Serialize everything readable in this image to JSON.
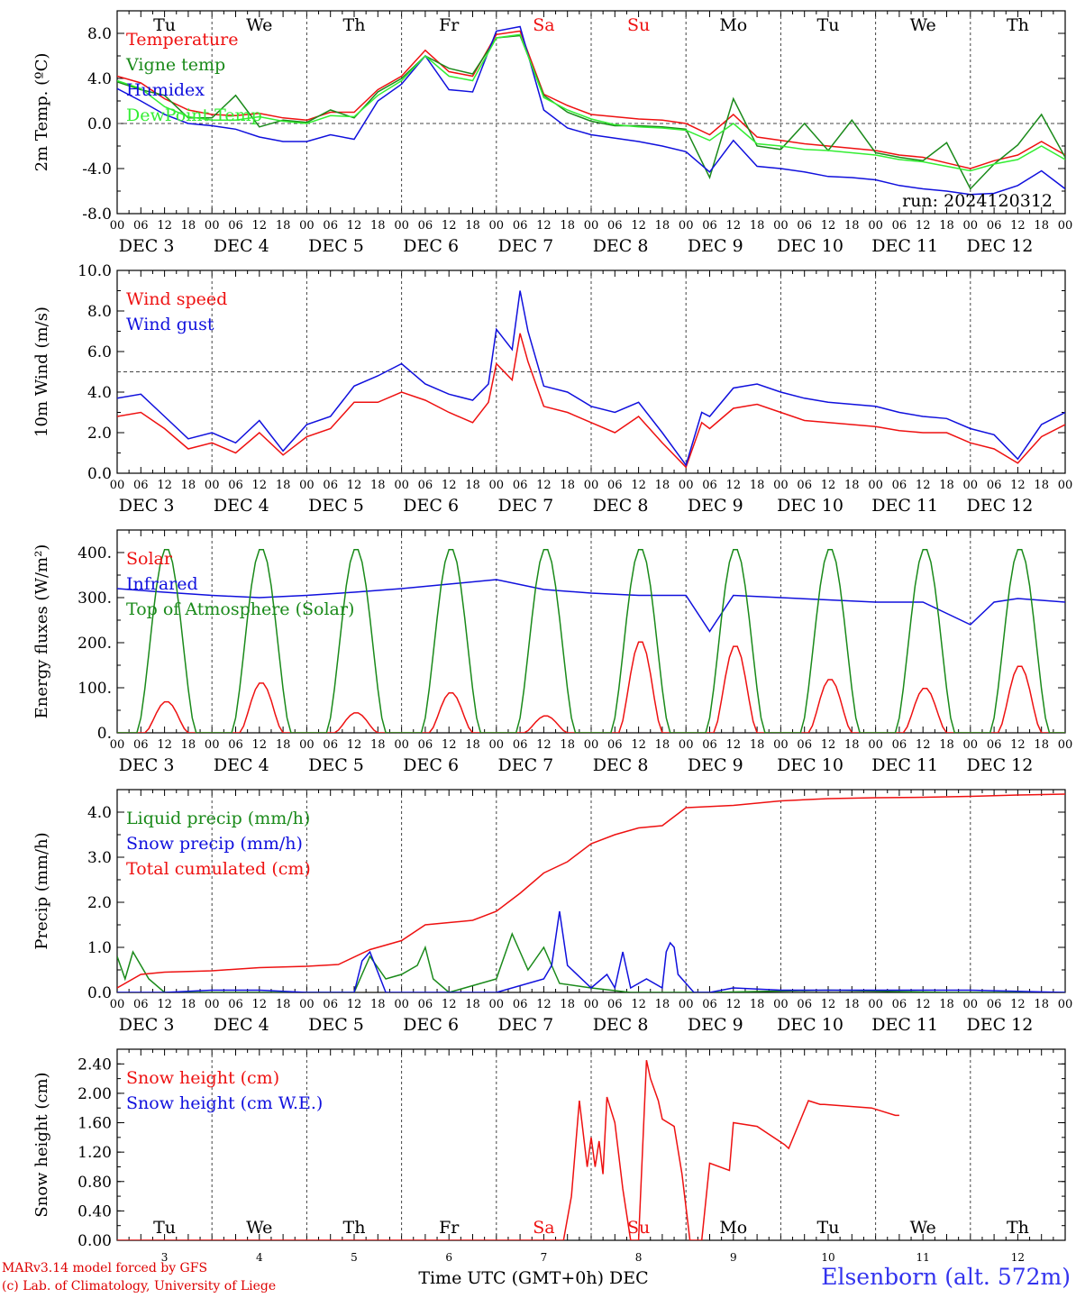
{
  "run_label": "run: 2024120312",
  "days": [
    "Tu",
    "We",
    "Th",
    "Fr",
    "Sa",
    "Su",
    "Mo",
    "Tu",
    "We",
    "Th"
  ],
  "weekend_days": [
    "Sa",
    "Su"
  ],
  "hour_ticks": [
    "00",
    "06",
    "12",
    "18"
  ],
  "final_tick": "00",
  "date_labels": [
    "DEC  3",
    "DEC  4",
    "DEC  5",
    "DEC  6",
    "DEC  7",
    "DEC  8",
    "DEC  9",
    "DEC 10",
    "DEC 11",
    "DEC 12"
  ],
  "bottom_day_numbers": [
    "3",
    "4",
    "5",
    "6",
    "7",
    "8",
    "9",
    "10",
    "11",
    "12"
  ],
  "bottom_xlabel": "Time UTC (GMT+0h) DEC",
  "footer": {
    "model": "MARv3.14 model forced by GFS",
    "copyright": "(c) Lab. of Climatology, University of Liege",
    "station": "Elsenborn (alt. 572m)"
  },
  "colors": {
    "red": "#ee1111",
    "green": "#1a8a1a",
    "blue": "#1010dd",
    "lightgreen": "#33ee33",
    "axis": "#000000",
    "grid": "#444444"
  },
  "chart_data": [
    {
      "type": "line",
      "ylabel": "2m Temp. (ºC)",
      "ylim": [
        -8,
        10
      ],
      "yticks": [
        "-8.0",
        "-4.0",
        "0.0",
        "4.0",
        "8.0"
      ],
      "reference_line": 0,
      "x_unit": "hours since 2024-12-03 00 UTC",
      "series": [
        {
          "name": "Temperature",
          "color": "red",
          "x": [
            0,
            6,
            12,
            18,
            24,
            30,
            36,
            42,
            48,
            54,
            60,
            66,
            72,
            78,
            84,
            90,
            96,
            102,
            108,
            114,
            120,
            126,
            132,
            138,
            144,
            150,
            156,
            162,
            168,
            174,
            180,
            186,
            192,
            198,
            204,
            210,
            216,
            222,
            228,
            234,
            240
          ],
          "values": [
            4.2,
            3.6,
            2.2,
            1.2,
            0.8,
            0.7,
            0.9,
            0.5,
            0.3,
            1.0,
            1.0,
            3.0,
            4.2,
            6.5,
            4.6,
            4.2,
            7.9,
            8.2,
            2.6,
            1.6,
            0.8,
            0.6,
            0.4,
            0.3,
            0.0,
            -1.0,
            0.8,
            -1.2,
            -1.5,
            -1.8,
            -2.0,
            -2.2,
            -2.4,
            -2.8,
            -3.0,
            -3.5,
            -4.0,
            -3.3,
            -2.8,
            -1.6,
            -2.8
          ]
        },
        {
          "name": "Vigne temp",
          "color": "green",
          "x": [
            0,
            6,
            12,
            18,
            24,
            30,
            36,
            42,
            48,
            54,
            60,
            66,
            72,
            78,
            84,
            90,
            96,
            102,
            108,
            114,
            120,
            126,
            132,
            138,
            144,
            150,
            156,
            162,
            168,
            174,
            180,
            186,
            192,
            198,
            204,
            210,
            216,
            222,
            228,
            234,
            240
          ],
          "values": [
            3.7,
            3.0,
            2.5,
            0.5,
            0.5,
            2.5,
            -0.3,
            0.3,
            0.1,
            1.2,
            0.5,
            2.8,
            4.0,
            6.0,
            4.9,
            4.4,
            7.6,
            7.8,
            2.5,
            1.0,
            0.2,
            -0.2,
            -0.2,
            -0.3,
            -0.5,
            -4.8,
            2.2,
            -2.0,
            -2.3,
            0.0,
            -2.4,
            0.3,
            -2.6,
            -3.0,
            -3.3,
            -1.7,
            -5.8,
            -3.6,
            -1.9,
            0.8,
            -3.0
          ]
        },
        {
          "name": "Humidex",
          "color": "blue",
          "x": [
            0,
            6,
            12,
            18,
            24,
            30,
            36,
            42,
            48,
            54,
            60,
            66,
            72,
            78,
            84,
            90,
            96,
            102,
            108,
            114,
            120,
            126,
            132,
            138,
            144,
            150,
            156,
            162,
            168,
            174,
            180,
            186,
            192,
            198,
            204,
            210,
            216,
            222,
            228,
            234,
            240
          ],
          "values": [
            3.1,
            2.0,
            0.8,
            0.0,
            -0.2,
            -0.5,
            -1.2,
            -1.6,
            -1.6,
            -1.0,
            -1.4,
            2.0,
            3.5,
            6.0,
            3.0,
            2.8,
            8.2,
            8.6,
            1.2,
            -0.4,
            -1.0,
            -1.3,
            -1.6,
            -2.0,
            -2.5,
            -4.3,
            -1.5,
            -3.8,
            -4.0,
            -4.3,
            -4.7,
            -4.8,
            -5.0,
            -5.5,
            -5.8,
            -6.0,
            -6.3,
            -6.2,
            -5.5,
            -4.2,
            -5.8
          ]
        },
        {
          "name": "DewPoint Temp",
          "color": "lightgreen",
          "x": [
            0,
            6,
            12,
            18,
            24,
            30,
            36,
            42,
            48,
            54,
            60,
            66,
            72,
            78,
            84,
            90,
            96,
            102,
            108,
            114,
            120,
            126,
            132,
            138,
            144,
            150,
            156,
            162,
            168,
            174,
            180,
            186,
            192,
            198,
            204,
            210,
            216,
            222,
            228,
            234,
            240
          ],
          "values": [
            3.8,
            3.1,
            1.5,
            0.6,
            0.3,
            0.3,
            0.6,
            0.2,
            0.0,
            0.7,
            0.6,
            2.5,
            3.8,
            6.0,
            4.2,
            3.8,
            7.6,
            7.9,
            2.3,
            1.2,
            0.4,
            -0.1,
            -0.3,
            -0.4,
            -0.6,
            -1.5,
            0.0,
            -1.8,
            -2.0,
            -2.3,
            -2.4,
            -2.6,
            -2.8,
            -3.2,
            -3.4,
            -3.8,
            -4.2,
            -3.6,
            -3.2,
            -2.0,
            -3.2
          ]
        }
      ]
    },
    {
      "type": "line",
      "ylabel": "10m Wind (m/s)",
      "ylim": [
        0,
        10
      ],
      "yticks": [
        "0.0",
        "2.0",
        "4.0",
        "6.0",
        "8.0",
        "10.0"
      ],
      "reference_line": 5,
      "x_unit": "hours since 2024-12-03 00 UTC",
      "series": [
        {
          "name": "Wind speed",
          "color": "red",
          "x": [
            0,
            6,
            12,
            18,
            24,
            30,
            36,
            42,
            48,
            54,
            60,
            66,
            72,
            78,
            84,
            90,
            94,
            96,
            100,
            102,
            104,
            108,
            114,
            120,
            126,
            132,
            138,
            144,
            148,
            150,
            156,
            162,
            168,
            174,
            180,
            186,
            192,
            198,
            204,
            210,
            216,
            222,
            228,
            234,
            240
          ],
          "values": [
            2.8,
            3.0,
            2.2,
            1.2,
            1.5,
            1.0,
            2.0,
            0.9,
            1.8,
            2.2,
            3.5,
            3.5,
            4.0,
            3.6,
            3.0,
            2.5,
            3.5,
            5.4,
            4.6,
            6.9,
            5.5,
            3.3,
            3.0,
            2.5,
            2.0,
            2.8,
            1.5,
            0.3,
            2.5,
            2.2,
            3.2,
            3.4,
            3.0,
            2.6,
            2.5,
            2.4,
            2.3,
            2.1,
            2.0,
            2.0,
            1.5,
            1.2,
            0.5,
            1.8,
            2.4
          ]
        },
        {
          "name": "Wind gust",
          "color": "blue",
          "x": [
            0,
            6,
            12,
            18,
            24,
            30,
            36,
            42,
            48,
            54,
            60,
            66,
            72,
            78,
            84,
            90,
            94,
            96,
            100,
            102,
            104,
            108,
            114,
            120,
            126,
            132,
            138,
            144,
            148,
            150,
            156,
            162,
            168,
            174,
            180,
            186,
            192,
            198,
            204,
            210,
            216,
            222,
            228,
            234,
            240
          ],
          "values": [
            3.7,
            3.9,
            2.8,
            1.7,
            2.0,
            1.5,
            2.6,
            1.1,
            2.4,
            2.8,
            4.3,
            4.8,
            5.4,
            4.4,
            3.9,
            3.6,
            4.4,
            7.1,
            6.1,
            9.0,
            7.0,
            4.3,
            4.0,
            3.3,
            3.0,
            3.5,
            2.0,
            0.4,
            3.0,
            2.8,
            4.2,
            4.4,
            4.0,
            3.7,
            3.5,
            3.4,
            3.3,
            3.0,
            2.8,
            2.7,
            2.2,
            1.9,
            0.7,
            2.4,
            3.0
          ]
        }
      ]
    },
    {
      "type": "line",
      "ylabel": "Energy fluxes (W/m²)",
      "ylim": [
        0,
        450
      ],
      "yticks": [
        "0.",
        "100.",
        "200.",
        "300.",
        "400."
      ],
      "x_unit": "hours since 2024-12-03 00 UTC",
      "solar_noon_peaks": [
        70,
        112,
        45,
        90,
        38,
        205,
        195,
        120,
        100,
        150
      ],
      "toa_peak": 410,
      "series": [
        {
          "name": "Solar",
          "color": "red",
          "note": "diurnal, peak values listed in solar_noon_peaks"
        },
        {
          "name": "Infrared",
          "color": "blue",
          "x": [
            0,
            12,
            24,
            36,
            48,
            60,
            72,
            84,
            96,
            108,
            120,
            132,
            144,
            150,
            156,
            168,
            180,
            192,
            204,
            216,
            222,
            228,
            240
          ],
          "values": [
            320,
            312,
            305,
            300,
            305,
            312,
            320,
            330,
            340,
            318,
            310,
            305,
            305,
            225,
            305,
            300,
            295,
            290,
            290,
            240,
            290,
            298,
            290
          ]
        },
        {
          "name": "Top of Atmosphere (Solar)",
          "color": "green",
          "note": "diurnal, peak approx. 410 each day"
        }
      ]
    },
    {
      "type": "line",
      "ylabel": "Precip (mm/h)",
      "ylim": [
        0,
        4.5
      ],
      "yticks": [
        "0.0",
        "1.0",
        "2.0",
        "3.0",
        "4.0"
      ],
      "x_unit": "hours since 2024-12-03 00 UTC",
      "series": [
        {
          "name": "Liquid precip (mm/h)",
          "color": "green",
          "x": [
            0,
            2,
            4,
            8,
            12,
            60,
            64,
            68,
            72,
            76,
            78,
            80,
            84,
            96,
            100,
            104,
            108,
            112,
            120,
            130,
            140,
            150,
            180,
            210,
            240
          ],
          "values": [
            0.8,
            0.3,
            0.9,
            0.3,
            0.0,
            0.0,
            0.8,
            0.3,
            0.4,
            0.6,
            1.0,
            0.3,
            0.0,
            0.3,
            1.3,
            0.5,
            1.0,
            0.2,
            0.1,
            0.0,
            0.0,
            0.0,
            0.05,
            0.0,
            0.0
          ]
        },
        {
          "name": "Snow precip (mm/h)",
          "color": "blue",
          "x": [
            0,
            12,
            24,
            36,
            48,
            60,
            62,
            64,
            68,
            96,
            108,
            110,
            112,
            114,
            120,
            124,
            126,
            128,
            130,
            134,
            138,
            139,
            140,
            141,
            142,
            146,
            150,
            156,
            168,
            192,
            216,
            240
          ],
          "values": [
            0.0,
            0.0,
            0.05,
            0.05,
            0.0,
            0.0,
            0.7,
            0.9,
            0.0,
            0.0,
            0.3,
            0.6,
            1.8,
            0.6,
            0.1,
            0.4,
            0.1,
            0.9,
            0.1,
            0.3,
            0.1,
            0.9,
            1.1,
            1.0,
            0.4,
            0.0,
            0.0,
            0.1,
            0.05,
            0.05,
            0.05,
            0.0
          ]
        },
        {
          "name": "Total cumulated (cm)",
          "color": "red",
          "x": [
            0,
            6,
            12,
            24,
            36,
            48,
            56,
            64,
            72,
            78,
            84,
            90,
            96,
            102,
            108,
            114,
            120,
            126,
            132,
            138,
            144,
            156,
            168,
            180,
            192,
            204,
            216,
            228,
            240
          ],
          "values": [
            0.1,
            0.4,
            0.45,
            0.48,
            0.55,
            0.58,
            0.62,
            0.95,
            1.15,
            1.5,
            1.55,
            1.6,
            1.8,
            2.2,
            2.65,
            2.9,
            3.3,
            3.5,
            3.65,
            3.7,
            4.1,
            4.15,
            4.25,
            4.3,
            4.32,
            4.33,
            4.35,
            4.38,
            4.4
          ]
        }
      ]
    },
    {
      "type": "line",
      "ylabel": "Snow height (cm)",
      "ylim": [
        0,
        2.6
      ],
      "yticks": [
        "0.00",
        "0.40",
        "0.80",
        "1.20",
        "1.60",
        "2.00",
        "2.40"
      ],
      "x_unit": "hours since 2024-12-03 00 UTC",
      "series": [
        {
          "name": "Snow height (cm)",
          "color": "red",
          "x": [
            0,
            36,
            72,
            108,
            113,
            115,
            117,
            119,
            120,
            121,
            122,
            123,
            124,
            126,
            128,
            130,
            132,
            134,
            135,
            137,
            138,
            141,
            143,
            145,
            148,
            150,
            155,
            156,
            162,
            169,
            170,
            175,
            178,
            179,
            191,
            197,
            198
          ],
          "values": [
            0,
            0,
            0,
            0,
            0,
            0.6,
            1.9,
            1.0,
            1.4,
            1.0,
            1.35,
            0.9,
            1.95,
            1.6,
            0.7,
            0,
            0,
            2.45,
            2.2,
            1.9,
            1.65,
            1.55,
            0.9,
            0,
            0,
            1.05,
            0.95,
            1.6,
            1.55,
            1.3,
            1.25,
            1.9,
            1.85,
            1.85,
            1.8,
            1.7,
            1.7
          ]
        },
        {
          "name": "Snow height (cm W.E.)",
          "color": "blue"
        }
      ]
    }
  ]
}
